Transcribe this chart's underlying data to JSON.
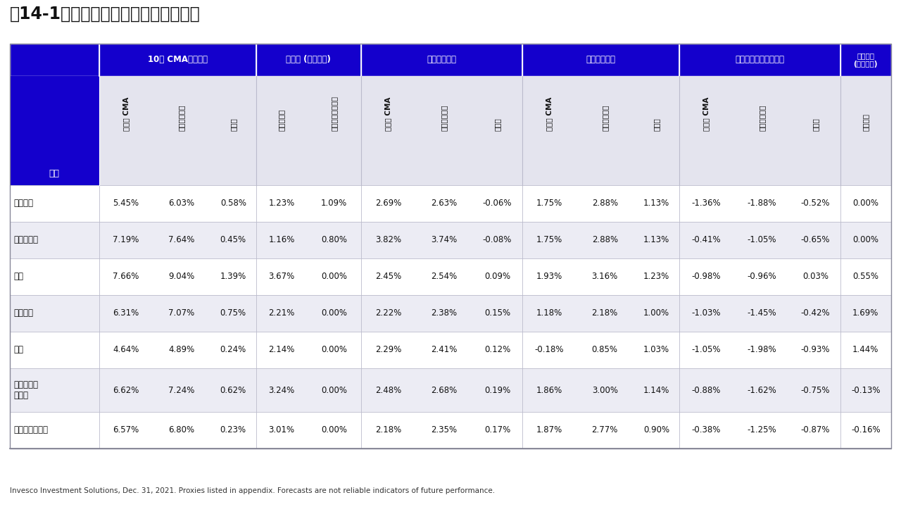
{
  "title": "図14-1：株式リターンに行われた調整",
  "header_bg": "#1400CC",
  "header_text_color": "#FFFFFF",
  "subheader_bg": "#E4E4EE",
  "body_bg": "#FFFFFF",
  "col_groups": [
    {
      "label": "",
      "span": 1
    },
    {
      "label": "10年 CMAリターン",
      "span": 3
    },
    {
      "label": "利回り (変化なし)",
      "span": 2
    },
    {
      "label": "実質利益成長",
      "span": 3
    },
    {
      "label": "期待インフレ",
      "span": 3
    },
    {
      "label": "バリュエーション変化",
      "span": 3
    },
    {
      "label": "通貨調整\n(変化なし)",
      "span": 1
    }
  ],
  "col_headers": [
    "資産",
    "ベース CMA",
    "気候変動考慮",
    "変化幅",
    "配当利回り",
    "バイバック利回り",
    "ベース CMA",
    "気候変動考慮",
    "変化幅",
    "ベース CMA",
    "気候変動考慮",
    "変化幅",
    "ベース CMA",
    "気候変動考慮",
    "変化幅",
    "通貨調整"
  ],
  "rows": [
    {
      "label": "米国大型",
      "values": [
        "5.45%",
        "6.03%",
        "0.58%",
        "1.23%",
        "1.09%",
        "2.69%",
        "2.63%",
        "-0.06%",
        "1.75%",
        "2.88%",
        "1.13%",
        "-1.36%",
        "-1.88%",
        "-0.52%",
        "0.00%"
      ]
    },
    {
      "label": "米国中小型",
      "values": [
        "7.19%",
        "7.64%",
        "0.45%",
        "1.16%",
        "0.80%",
        "3.82%",
        "3.74%",
        "-0.08%",
        "1.75%",
        "2.88%",
        "1.13%",
        "-0.41%",
        "-1.05%",
        "-0.65%",
        "0.00%"
      ]
    },
    {
      "label": "英国",
      "values": [
        "7.66%",
        "9.04%",
        "1.39%",
        "3.67%",
        "0.00%",
        "2.45%",
        "2.54%",
        "0.09%",
        "1.93%",
        "3.16%",
        "1.23%",
        "-0.98%",
        "-0.96%",
        "0.03%",
        "0.55%"
      ]
    },
    {
      "label": "ユーロ圏",
      "values": [
        "6.31%",
        "7.07%",
        "0.75%",
        "2.21%",
        "0.00%",
        "2.22%",
        "2.38%",
        "0.15%",
        "1.18%",
        "2.18%",
        "1.00%",
        "-1.03%",
        "-1.45%",
        "-0.42%",
        "1.69%"
      ]
    },
    {
      "label": "日本",
      "values": [
        "4.64%",
        "4.89%",
        "0.24%",
        "2.14%",
        "0.00%",
        "2.29%",
        "2.41%",
        "0.12%",
        "-0.18%",
        "0.85%",
        "1.03%",
        "-1.05%",
        "-1.98%",
        "-0.93%",
        "1.44%"
      ]
    },
    {
      "label": "日本を除く\nアジア",
      "values": [
        "6.62%",
        "7.24%",
        "0.62%",
        "3.24%",
        "0.00%",
        "2.48%",
        "2.68%",
        "0.19%",
        "1.86%",
        "3.00%",
        "1.14%",
        "-0.88%",
        "-1.62%",
        "-0.75%",
        "-0.13%"
      ]
    },
    {
      "label": "オーストラリア",
      "values": [
        "6.57%",
        "6.80%",
        "0.23%",
        "3.01%",
        "0.00%",
        "2.18%",
        "2.35%",
        "0.17%",
        "1.87%",
        "2.77%",
        "0.90%",
        "-0.38%",
        "-1.25%",
        "-0.87%",
        "-0.16%"
      ]
    }
  ],
  "footer": "Invesco Investment Solutions, Dec. 31, 2021. Proxies listed in appendix. Forecasts are not reliable indicators of future performance.",
  "col_widths_rel": [
    1.4,
    0.85,
    0.9,
    0.72,
    0.8,
    0.85,
    0.85,
    0.9,
    0.78,
    0.85,
    0.9,
    0.72,
    0.85,
    0.9,
    0.78,
    0.8
  ]
}
